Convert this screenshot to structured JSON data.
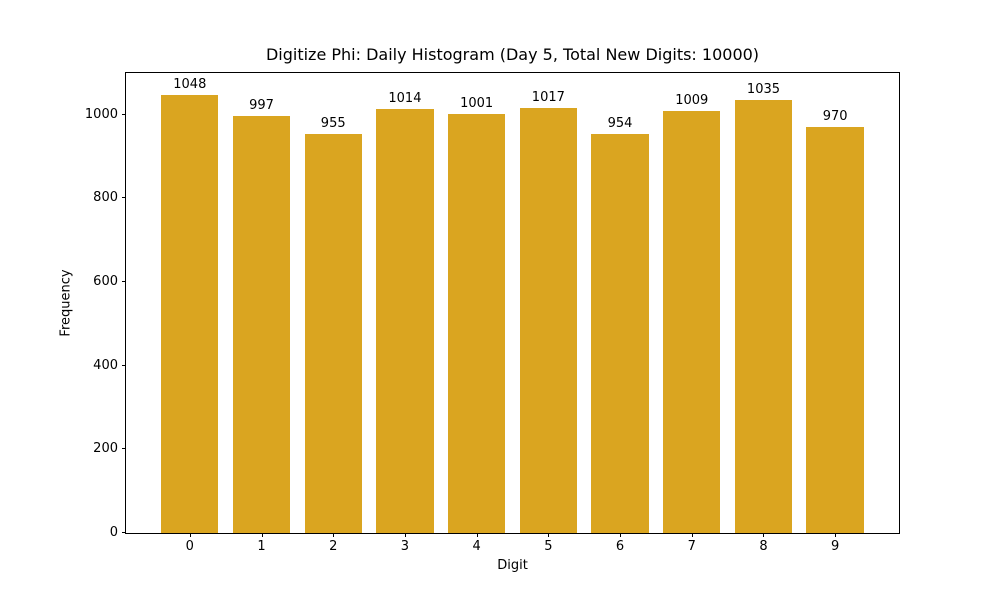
{
  "figure": {
    "background_color": "#ffffff",
    "text_color": "#000000",
    "spine_color": "#000000"
  },
  "chart_data": {
    "type": "bar",
    "title": "Digitize Phi: Daily Histogram (Day 5, Total New Digits: 10000)",
    "xlabel": "Digit",
    "ylabel": "Frequency",
    "categories": [
      "0",
      "1",
      "2",
      "3",
      "4",
      "5",
      "6",
      "7",
      "8",
      "9"
    ],
    "values": [
      1048,
      997,
      955,
      1014,
      1001,
      1017,
      954,
      1009,
      1035,
      970
    ],
    "bar_value_labels": [
      "1048",
      "997",
      "955",
      "1014",
      "1001",
      "1017",
      "954",
      "1009",
      "1035",
      "970"
    ],
    "bar_color": "#DAA520",
    "bar_width": 0.8,
    "xlim": [
      -0.89,
      9.89
    ],
    "ylim": [
      0,
      1100
    ],
    "yticks": [
      0,
      200,
      400,
      600,
      800,
      1000
    ],
    "grid": false,
    "legend": null
  }
}
